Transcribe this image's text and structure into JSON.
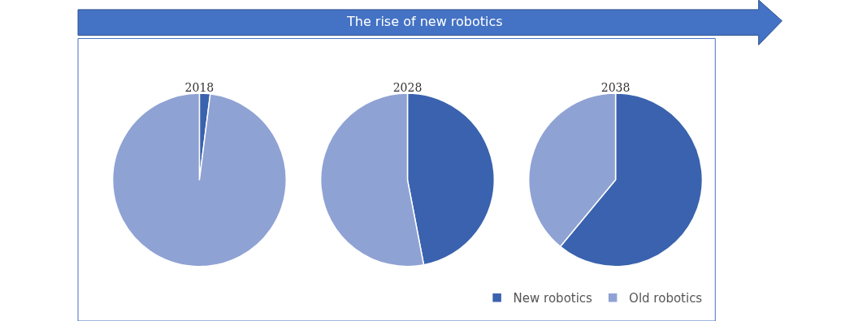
{
  "chart_data": {
    "type": "pie",
    "title": "The rise of new robotics",
    "categories": [
      "New robotics",
      "Old robotics"
    ],
    "colors": [
      "#3a62ae",
      "#8fa2d4"
    ],
    "legend": "bottom right",
    "series": [
      {
        "name": "2018",
        "values": [
          2,
          98
        ]
      },
      {
        "name": "2028",
        "values": [
          47,
          53
        ]
      },
      {
        "name": "2038",
        "values": [
          61,
          39
        ]
      }
    ]
  }
}
